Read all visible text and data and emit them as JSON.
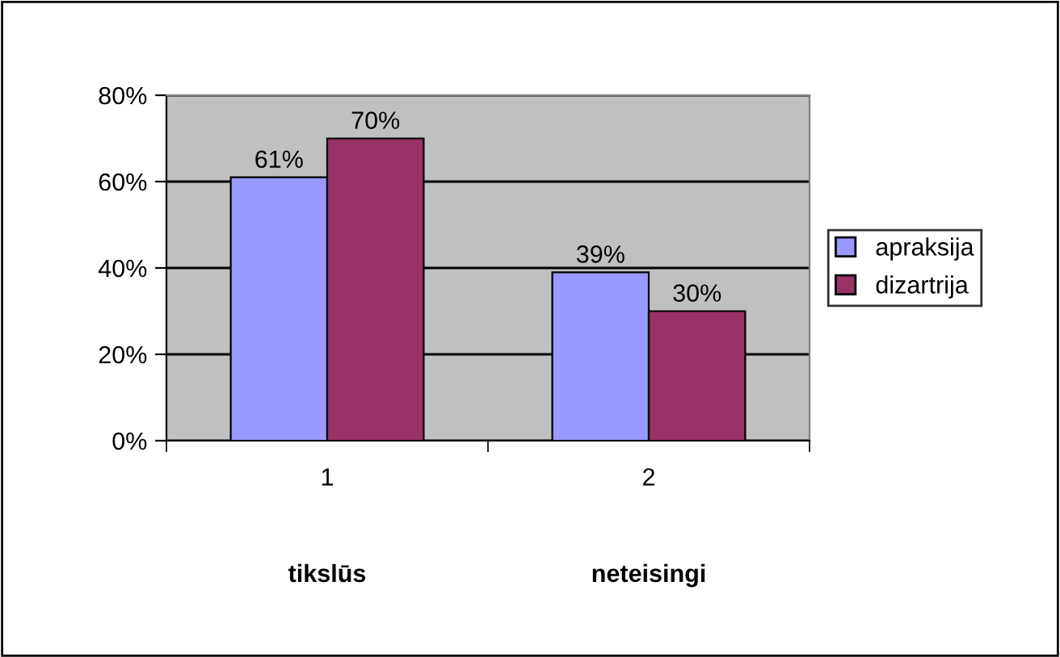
{
  "chart_data": {
    "type": "bar",
    "categories": [
      "1",
      "2"
    ],
    "series": [
      {
        "name": "apraksija",
        "color": "#9999ff",
        "values": [
          61,
          39
        ],
        "value_labels": [
          "61%",
          "39%"
        ]
      },
      {
        "name": "dizartrija",
        "color": "#993366",
        "values": [
          70,
          30
        ],
        "value_labels": [
          "70%",
          "30%"
        ]
      }
    ],
    "ylim": [
      0,
      80
    ],
    "yticks": [
      {
        "value": 0,
        "label": "0%"
      },
      {
        "value": 20,
        "label": "20%"
      },
      {
        "value": 40,
        "label": "40%"
      },
      {
        "value": 60,
        "label": "60%"
      },
      {
        "value": 80,
        "label": "80%"
      }
    ],
    "grid": "y",
    "legend": "right",
    "annotations": [
      "tikslūs",
      "neteisingi"
    ]
  }
}
